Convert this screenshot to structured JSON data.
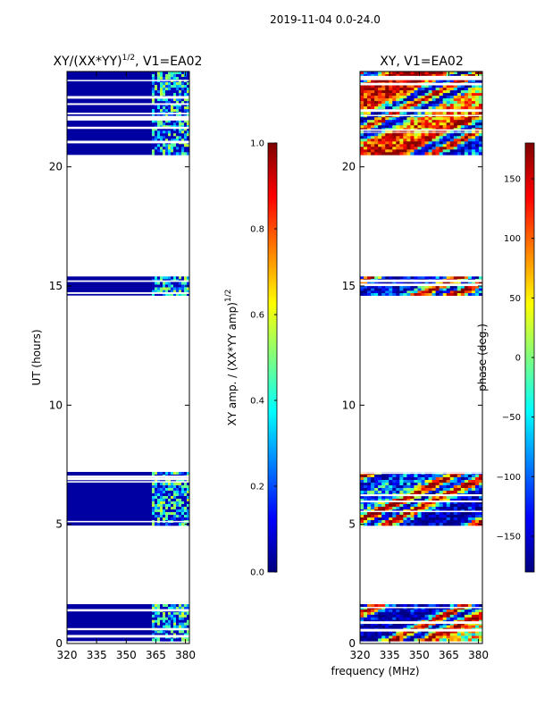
{
  "figure": {
    "suptitle": "2019-11-04 0.0-24.0",
    "shared_xlabel": "frequency (MHz)"
  },
  "colors": {
    "jet": [
      "#00007f",
      "#0000ff",
      "#007fff",
      "#00ffff",
      "#7fff7f",
      "#ffff00",
      "#ff7f00",
      "#ff0000",
      "#7f0000"
    ],
    "background": "#ffffff",
    "axis": "#000000"
  },
  "chart_data": [
    {
      "type": "heatmap",
      "panel": "left",
      "title_main": "XY/(XX*YY)",
      "title_exp": "1/2",
      "title_tail": ", V1=EA02",
      "xlabel": "",
      "ylabel": "UT (hours)",
      "xlim": [
        320,
        382
      ],
      "ylim": [
        0,
        24
      ],
      "xticks": [
        320,
        335,
        350,
        365,
        380
      ],
      "yticks": [
        0,
        5,
        10,
        15,
        20
      ],
      "channel_split_mhz": 363,
      "value_range": [
        0,
        1
      ],
      "data_blocks_ut": [
        [
          0.1,
          1.65
        ],
        [
          4.95,
          7.2
        ],
        [
          14.6,
          15.4
        ],
        [
          20.5,
          24.0
        ]
      ],
      "dominant_value_low_channels": 0.0,
      "typical_value_high_channels": 0.35,
      "colorbar": {
        "label_main": "XY amp. / (XX*YY amp)",
        "label_exp": "1/2",
        "range": [
          0,
          1
        ],
        "ticks": [
          "0.0",
          "0.2",
          "0.4",
          "0.6",
          "0.8",
          "1.0"
        ]
      }
    },
    {
      "type": "heatmap",
      "panel": "right",
      "title": "XY, V1=EA02",
      "xlabel": "frequency (MHz)",
      "ylabel": "",
      "xlim": [
        320,
        382
      ],
      "ylim": [
        0,
        24
      ],
      "xticks": [
        320,
        335,
        350,
        365,
        380
      ],
      "yticks": [
        0,
        5,
        10,
        15,
        20
      ],
      "value_range": [
        -180,
        180
      ],
      "data_blocks_ut": [
        [
          0.1,
          1.65
        ],
        [
          4.95,
          7.2
        ],
        [
          14.6,
          15.4
        ],
        [
          20.5,
          24.0
        ]
      ],
      "colorbar": {
        "label": "phase (deg.)",
        "range": [
          -180,
          180
        ],
        "ticks": [
          "150",
          "100",
          "50",
          "0",
          "−50",
          "−100",
          "−150"
        ]
      }
    }
  ]
}
